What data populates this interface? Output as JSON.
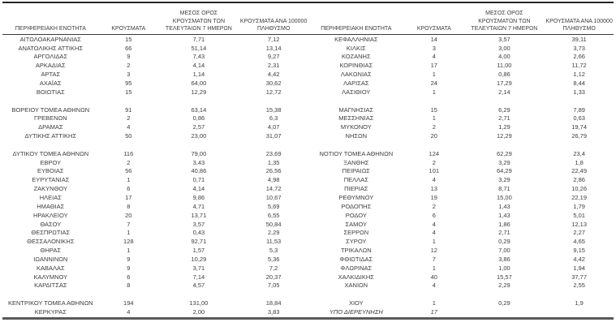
{
  "table": {
    "headers": {
      "region": "ΠΕΡΙΦΕΡΕΙΑΚΗ ΕΝΟΤΗΤΑ",
      "cases": "ΚΡΟΥΣΜΑΤΑ",
      "avg7": "ΜΕΣΟΣ ΟΡΟΣ\nΚΡΟΥΣΜΑΤΩΝ ΤΩΝ\nΤΕΛΕΥΤΑΙΩΝ 7 ΗΜΕΡΩΝ",
      "per100k": "ΚΡΟΥΣΜΑΤΑ ΑΝΑ 100000\nΠΛΗΘΥΣΜΟ"
    },
    "left_rows": [
      {
        "region": "ΑΙΤΩΛΟΑΚΑΡΝΑΝΙΑΣ",
        "cases": "15",
        "avg7": "7,71",
        "per100k": "7,12"
      },
      {
        "region": "ΑΝΑΤΟΛΙΚΗΣ ΑΤΤΙΚΗΣ",
        "cases": "66",
        "avg7": "51,14",
        "per100k": "13,14"
      },
      {
        "region": "ΑΡΓΟΛΙΔΑΣ",
        "cases": "9",
        "avg7": "7,43",
        "per100k": "9,27"
      },
      {
        "region": "ΑΡΚΑΔΙΑΣ",
        "cases": "2",
        "avg7": "4,14",
        "per100k": "2,31"
      },
      {
        "region": "ΑΡΤΑΣ",
        "cases": "3",
        "avg7": "1,14",
        "per100k": "4,42"
      },
      {
        "region": "ΑΧΑΪΑΣ",
        "cases": "95",
        "avg7": "64,00",
        "per100k": "30,62"
      },
      {
        "region": "ΒΟΙΩΤΙΑΣ",
        "cases": "15",
        "avg7": "12,29",
        "per100k": "12,72"
      },
      {
        "region": "",
        "cases": "",
        "avg7": "",
        "per100k": ""
      },
      {
        "region": "ΒΟΡΕΙΟΥ ΤΟΜΕΑ ΑΘΗΝΩΝ",
        "cases": "91",
        "avg7": "63,14",
        "per100k": "15,38"
      },
      {
        "region": "ΓΡΕΒΕΝΩΝ",
        "cases": "2",
        "avg7": "0,86",
        "per100k": "6,3"
      },
      {
        "region": "ΔΡΑΜΑΣ",
        "cases": "4",
        "avg7": "2,57",
        "per100k": "4,07"
      },
      {
        "region": "ΔΥΤΙΚΗΣ ΑΤΤΙΚΗΣ",
        "cases": "50",
        "avg7": "23,00",
        "per100k": "31,07"
      },
      {
        "region": "",
        "cases": "",
        "avg7": "",
        "per100k": ""
      },
      {
        "region": "ΔΥΤΙΚΟΥ ΤΟΜΕΑ ΑΘΗΝΩΝ",
        "cases": "116",
        "avg7": "79,00",
        "per100k": "23,69"
      },
      {
        "region": "ΕΒΡΟΥ",
        "cases": "2",
        "avg7": "3,43",
        "per100k": "1,35"
      },
      {
        "region": "ΕΥΒΟΙΑΣ",
        "cases": "56",
        "avg7": "40,86",
        "per100k": "26,56"
      },
      {
        "region": "ΕΥΡΥΤΑΝΙΑΣ",
        "cases": "1",
        "avg7": "0,71",
        "per100k": "4,98"
      },
      {
        "region": "ΖΑΚΥΝΘΟΥ",
        "cases": "6",
        "avg7": "4,14",
        "per100k": "14,72"
      },
      {
        "region": "ΗΛΕΙΑΣ",
        "cases": "17",
        "avg7": "9,86",
        "per100k": "10,67"
      },
      {
        "region": "ΗΜΑΘΙΑΣ",
        "cases": "8",
        "avg7": "4,71",
        "per100k": "5,69"
      },
      {
        "region": "ΗΡΑΚΛΕΙΟΥ",
        "cases": "20",
        "avg7": "13,71",
        "per100k": "6,55"
      },
      {
        "region": "ΘΑΣΟΥ",
        "cases": "7",
        "avg7": "3,57",
        "per100k": "50,84"
      },
      {
        "region": "ΘΕΣΠΡΩΤΙΑΣ",
        "cases": "1",
        "avg7": "0,43",
        "per100k": "2,29"
      },
      {
        "region": "ΘΕΣΣΑΛΟΝΙΚΗΣ",
        "cases": "128",
        "avg7": "92,71",
        "per100k": "11,53"
      },
      {
        "region": "ΘΗΡΑΣ",
        "cases": "1",
        "avg7": "1,57",
        "per100k": "5,3"
      },
      {
        "region": "ΙΩΑΝΝΙΝΩΝ",
        "cases": "9",
        "avg7": "10,29",
        "per100k": "5,36"
      },
      {
        "region": "ΚΑΒΑΛΑΣ",
        "cases": "9",
        "avg7": "3,71",
        "per100k": "7,2"
      },
      {
        "region": "ΚΑΛΥΜΝΟΥ",
        "cases": "6",
        "avg7": "7,14",
        "per100k": "20,37"
      },
      {
        "region": "ΚΑΡΔΙΤΣΑΣ",
        "cases": "8",
        "avg7": "4,57",
        "per100k": "7,05"
      },
      {
        "region": "",
        "cases": "",
        "avg7": "",
        "per100k": ""
      },
      {
        "region": "ΚΕΝΤΡΙΚΟΥ ΤΟΜΕΑ ΑΘΗΝΩΝ",
        "cases": "194",
        "avg7": "131,00",
        "per100k": "18,84"
      },
      {
        "region": "ΚΕΡΚΥΡΑΣ",
        "cases": "4",
        "avg7": "2,00",
        "per100k": "3,83"
      }
    ],
    "right_rows": [
      {
        "region": "ΚΕΦΑΛΛΗΝΙΑΣ",
        "cases": "14",
        "avg7": "3,57",
        "per100k": "39,11"
      },
      {
        "region": "ΚΙΛΚΙΣ",
        "cases": "3",
        "avg7": "3,00",
        "per100k": "3,73"
      },
      {
        "region": "ΚΟΖΑΝΗΣ",
        "cases": "4",
        "avg7": "4,00",
        "per100k": "2,66"
      },
      {
        "region": "ΚΟΡΙΝΘΙΑΣ",
        "cases": "17",
        "avg7": "11,00",
        "per100k": "11,72"
      },
      {
        "region": "ΛΑΚΩΝΙΑΣ",
        "cases": "1",
        "avg7": "0,86",
        "per100k": "1,12"
      },
      {
        "region": "ΛΑΡΙΣΑΣ",
        "cases": "24",
        "avg7": "17,29",
        "per100k": "8,44"
      },
      {
        "region": "ΛΑΣΙΘΙΟΥ",
        "cases": "1",
        "avg7": "2,14",
        "per100k": "1,33"
      },
      {
        "region": "",
        "cases": "",
        "avg7": "",
        "per100k": ""
      },
      {
        "region": "ΜΑΓΝΗΣΙΑΣ",
        "cases": "15",
        "avg7": "6,29",
        "per100k": "7,89"
      },
      {
        "region": "ΜΕΣΣΗΝΙΑΣ",
        "cases": "1",
        "avg7": "2,71",
        "per100k": "0,63"
      },
      {
        "region": "ΜΥΚΟΝΟΥ",
        "cases": "2",
        "avg7": "1,29",
        "per100k": "19,74"
      },
      {
        "region": "ΝΗΣΩΝ",
        "cases": "20",
        "avg7": "12,29",
        "per100k": "26,79"
      },
      {
        "region": "",
        "cases": "",
        "avg7": "",
        "per100k": ""
      },
      {
        "region": "ΝΟΤΙΟΥ ΤΟΜΕΑ ΑΘΗΝΩΝ",
        "cases": "124",
        "avg7": "62,29",
        "per100k": "23,4"
      },
      {
        "region": "ΞΑΝΘΗΣ",
        "cases": "2",
        "avg7": "3,29",
        "per100k": "1,8"
      },
      {
        "region": "ΠΕΙΡΑΙΩΣ",
        "cases": "101",
        "avg7": "64,29",
        "per100k": "22,49"
      },
      {
        "region": "ΠΕΛΛΑΣ",
        "cases": "4",
        "avg7": "3,29",
        "per100k": "2,86"
      },
      {
        "region": "ΠΙΕΡΙΑΣ",
        "cases": "13",
        "avg7": "8,71",
        "per100k": "10,26"
      },
      {
        "region": "ΡΕΘΥΜΝΟΥ",
        "cases": "19",
        "avg7": "15,00",
        "per100k": "22,19"
      },
      {
        "region": "ΡΟΔΟΠΗΣ",
        "cases": "2",
        "avg7": "1,43",
        "per100k": "1,79"
      },
      {
        "region": "ΡΟΔΟΥ",
        "cases": "6",
        "avg7": "1,43",
        "per100k": "5,01"
      },
      {
        "region": "ΣΑΜΟΥ",
        "cases": "4",
        "avg7": "1,86",
        "per100k": "12,13"
      },
      {
        "region": "ΣΕΡΡΩΝ",
        "cases": "4",
        "avg7": "2,71",
        "per100k": "2,27"
      },
      {
        "region": "ΣΥΡΟΥ",
        "cases": "1",
        "avg7": "0,29",
        "per100k": "4,65"
      },
      {
        "region": "ΤΡΙΚΑΛΩΝ",
        "cases": "12",
        "avg7": "7,00",
        "per100k": "9,15"
      },
      {
        "region": "ΦΘΙΩΤΙΔΑΣ",
        "cases": "7",
        "avg7": "3,86",
        "per100k": "4,42"
      },
      {
        "region": "ΦΛΩΡΙΝΑΣ",
        "cases": "1",
        "avg7": "1,00",
        "per100k": "1,94"
      },
      {
        "region": "ΧΑΛΚΙΔΙΚΗΣ",
        "cases": "40",
        "avg7": "15,57",
        "per100k": "37,77"
      },
      {
        "region": "ΧΑΝΙΩΝ",
        "cases": "4",
        "avg7": "2,29",
        "per100k": "2,55"
      },
      {
        "region": "",
        "cases": "",
        "avg7": "",
        "per100k": ""
      },
      {
        "region": "ΧΙΟΥ",
        "cases": "1",
        "avg7": "0,29",
        "per100k": "1,9"
      },
      {
        "region": "ΥΠΟ ΔΙΕΡΕΥΝΗΣΗ",
        "cases": "17",
        "avg7": "",
        "per100k": "",
        "italic": true
      }
    ]
  }
}
